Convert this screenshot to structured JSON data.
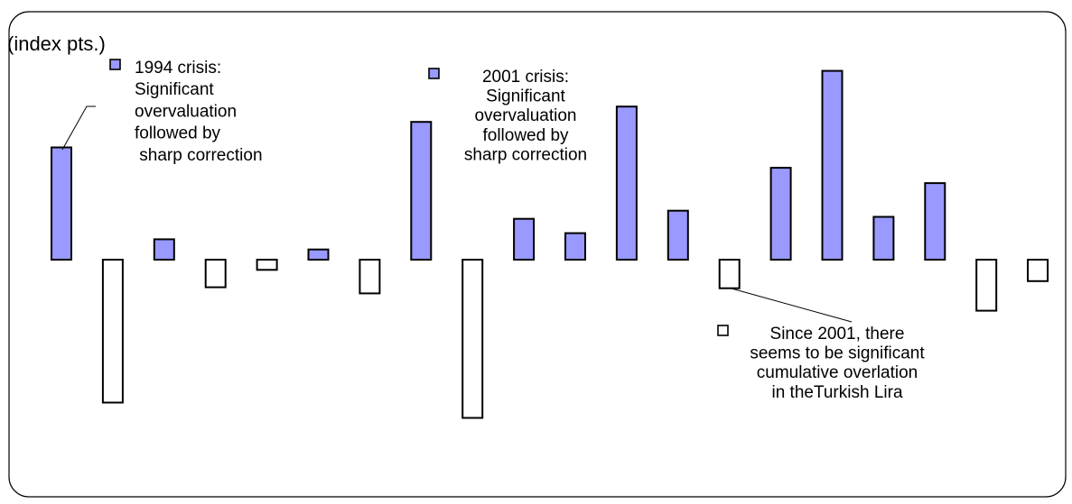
{
  "colors": {
    "positive_fill": "#9999FF",
    "negative_fill": "#FFFFFF",
    "stroke": "#000000",
    "frame": "#000000"
  },
  "chart_data": {
    "type": "bar",
    "ylabel": "(index pts.)",
    "values": [
      11,
      -14,
      2,
      -2.7,
      -1,
      1,
      -3.3,
      13.5,
      -15.5,
      4,
      2.6,
      15,
      4.8,
      -2.8,
      9,
      18.5,
      4.2,
      7.5,
      -5,
      -2.1
    ],
    "ylim": [
      -17,
      21
    ],
    "grid": false,
    "legend": "none",
    "annotations": [
      {
        "lines": [
          "1994 crisis:",
          "Significant",
          "overvaluation",
          "followed by",
          " sharp correction"
        ],
        "bar_index": 0,
        "marker": "positive"
      },
      {
        "lines": [
          "2001 crisis:",
          "Significant",
          "overvaluation",
          "followed by",
          "sharp correction"
        ],
        "bar_index": 7,
        "marker": "positive"
      },
      {
        "lines": [
          "Since 2001, there",
          "seems to be significant",
          "cumulative overlation",
          "in theTurkish Lira"
        ],
        "bar_index": 13,
        "marker": "negative"
      }
    ]
  }
}
